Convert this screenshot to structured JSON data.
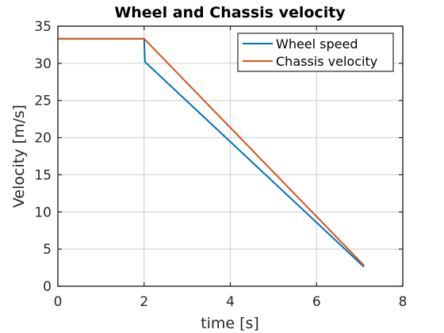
{
  "chart_data": {
    "type": "line",
    "title": "Wheel and Chassis velocity",
    "xlabel": "time [s]",
    "ylabel": "Velocity [m/s]",
    "xlim": [
      0,
      8
    ],
    "ylim": [
      0,
      35
    ],
    "xticks": [
      0,
      2,
      4,
      6,
      8
    ],
    "yticks": [
      0,
      5,
      10,
      15,
      20,
      25,
      30,
      35
    ],
    "grid": true,
    "legend": "top-right",
    "series": [
      {
        "name": "Wheel speed",
        "color": "#0072BD",
        "x": [
          0,
          2.0,
          2.02,
          7.1
        ],
        "y": [
          33.3,
          33.3,
          30.2,
          2.6
        ]
      },
      {
        "name": "Chassis velocity",
        "color": "#D95319",
        "x": [
          0,
          2.0,
          7.1
        ],
        "y": [
          33.3,
          33.3,
          2.8
        ]
      }
    ]
  }
}
